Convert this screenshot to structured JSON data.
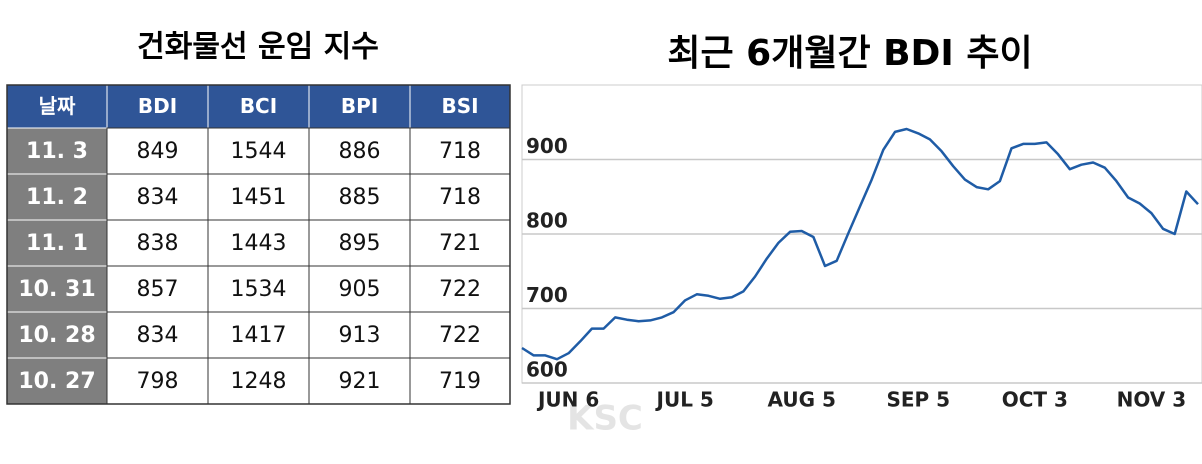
{
  "table": {
    "title": "건화물선 운임 지수",
    "header": [
      "날짜",
      "BDI",
      "BCI",
      "BPI",
      "BSI"
    ],
    "rows": [
      [
        "11. 3",
        849,
        1544,
        886,
        718
      ],
      [
        "11. 2",
        834,
        1451,
        885,
        718
      ],
      [
        "11. 1",
        838,
        1443,
        895,
        721
      ],
      [
        "10. 31",
        857,
        1534,
        905,
        722
      ],
      [
        "10. 28",
        834,
        1417,
        913,
        722
      ],
      [
        "10. 27",
        798,
        1248,
        921,
        719
      ]
    ]
  },
  "chart_data": {
    "type": "line",
    "title": "최근 6개월간 BDI 추이",
    "categories": [
      null,
      null,
      null,
      null,
      "JUN 6",
      null,
      null,
      null,
      null,
      null,
      null,
      null,
      null,
      null,
      "JUL 5",
      null,
      null,
      null,
      null,
      null,
      null,
      null,
      null,
      null,
      "AUG 5",
      null,
      null,
      null,
      null,
      null,
      null,
      null,
      null,
      null,
      "SEP 5",
      null,
      null,
      null,
      null,
      null,
      null,
      null,
      null,
      null,
      "OCT 3",
      null,
      null,
      null,
      null,
      null,
      null,
      null,
      null,
      null,
      "NOV 3",
      null,
      null,
      null,
      null
    ],
    "values": [
      647,
      637,
      637,
      632,
      640,
      656,
      673,
      673,
      688,
      685,
      683,
      684,
      688,
      695,
      711,
      719,
      717,
      713,
      715,
      723,
      743,
      767,
      788,
      803,
      804,
      796,
      757,
      764,
      801,
      837,
      873,
      913,
      937,
      941,
      935,
      927,
      911,
      891,
      873,
      863,
      860,
      871,
      915,
      921,
      921,
      923,
      907,
      887,
      893,
      896,
      889,
      871,
      849,
      841,
      828,
      807,
      800,
      857,
      840
    ],
    "color": "#1f5ca6",
    "ylim": [
      600,
      1000
    ],
    "yticks": [
      600,
      700,
      800,
      900
    ],
    "grid": true
  },
  "watermark": "KSC"
}
